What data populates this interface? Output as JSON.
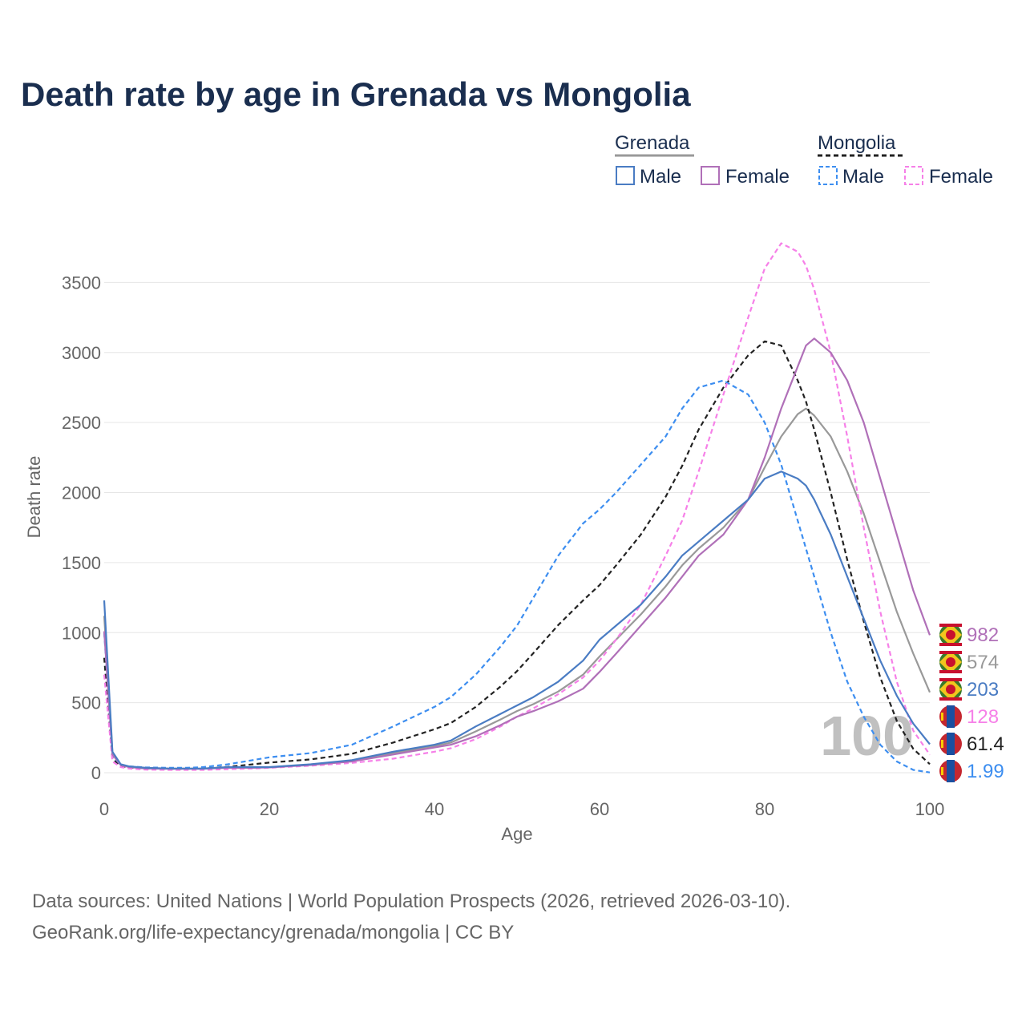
{
  "title": "Death rate by age in Grenada vs Mongolia",
  "legend": {
    "groups": [
      {
        "country": "Grenada",
        "male": "Male",
        "female": "Female"
      },
      {
        "country": "Mongolia",
        "male": "Male",
        "female": "Female"
      }
    ]
  },
  "colors": {
    "male": "#4a7cc3",
    "female": "#b070b8",
    "mongolia_male": "#3d8ef0",
    "mongolia_female": "#f680e8",
    "grenada_total": "#999999",
    "mongolia_total": "#222222"
  },
  "year_label": "100",
  "footer": {
    "line1": "Data sources: United Nations | World Population Prospects (2026, retrieved 2026-03-10).",
    "line2": "GeoRank.org/life-expectancy/grenada/mongolia | CC BY"
  },
  "chart_data": {
    "type": "line",
    "title": "Death rate by age in Grenada vs Mongolia",
    "xlabel": "Age",
    "ylabel": "Death rate",
    "xlim": [
      0,
      100
    ],
    "ylim": [
      0,
      3800
    ],
    "xticks": [
      0,
      20,
      40,
      60,
      80,
      100
    ],
    "yticks": [
      0,
      500,
      1000,
      1500,
      2000,
      2500,
      3000,
      3500
    ],
    "x": [
      0,
      1,
      2,
      3,
      5,
      8,
      10,
      12,
      15,
      18,
      20,
      25,
      30,
      35,
      40,
      42,
      45,
      48,
      50,
      52,
      55,
      58,
      60,
      62,
      65,
      68,
      70,
      72,
      75,
      78,
      80,
      82,
      84,
      85,
      86,
      88,
      90,
      92,
      94,
      96,
      98,
      100
    ],
    "series": [
      {
        "name": "Grenada Male",
        "key": "male",
        "dashed": false,
        "values": [
          1230,
          150,
          60,
          45,
          35,
          30,
          30,
          30,
          40,
          40,
          40,
          60,
          90,
          150,
          200,
          230,
          330,
          420,
          480,
          540,
          650,
          800,
          950,
          1050,
          1200,
          1400,
          1550,
          1650,
          1800,
          1950,
          2100,
          2150,
          2100,
          2050,
          1950,
          1700,
          1400,
          1100,
          800,
          550,
          350,
          203
        ],
        "end_label": "203"
      },
      {
        "name": "Grenada Female",
        "key": "female",
        "dashed": false,
        "values": [
          1010,
          130,
          55,
          40,
          30,
          28,
          28,
          28,
          35,
          35,
          38,
          55,
          80,
          130,
          180,
          200,
          260,
          340,
          400,
          440,
          510,
          600,
          720,
          850,
          1050,
          1250,
          1400,
          1550,
          1700,
          1950,
          2250,
          2600,
          2900,
          3050,
          3100,
          3000,
          2800,
          2500,
          2100,
          1700,
          1300,
          982
        ],
        "end_label": "982"
      },
      {
        "name": "Mongolia Male",
        "key": "mongolia_male",
        "dashed": true,
        "values": [
          1000,
          120,
          55,
          45,
          38,
          35,
          35,
          40,
          60,
          90,
          110,
          140,
          200,
          330,
          470,
          540,
          700,
          900,
          1050,
          1250,
          1550,
          1780,
          1880,
          2000,
          2200,
          2400,
          2600,
          2750,
          2800,
          2700,
          2500,
          2200,
          1800,
          1600,
          1400,
          1000,
          650,
          400,
          200,
          80,
          20,
          1.99
        ],
        "end_label": "1.99"
      },
      {
        "name": "Mongolia Female",
        "key": "mongolia_female",
        "dashed": true,
        "values": [
          700,
          80,
          40,
          30,
          22,
          20,
          20,
          20,
          25,
          30,
          35,
          50,
          70,
          100,
          150,
          175,
          240,
          330,
          400,
          460,
          560,
          680,
          800,
          950,
          1200,
          1550,
          1800,
          2150,
          2700,
          3250,
          3600,
          3780,
          3720,
          3620,
          3450,
          3000,
          2400,
          1750,
          1150,
          650,
          300,
          128
        ],
        "end_label": "128"
      },
      {
        "name": "Grenada",
        "key": "grenada_total",
        "dashed": false,
        "values": [
          1120,
          140,
          58,
          42,
          33,
          29,
          29,
          29,
          38,
          38,
          39,
          58,
          85,
          140,
          190,
          215,
          295,
          380,
          440,
          490,
          580,
          700,
          830,
          950,
          1130,
          1330,
          1480,
          1600,
          1750,
          1950,
          2180,
          2400,
          2560,
          2600,
          2550,
          2400,
          2150,
          1850,
          1500,
          1150,
          850,
          574
        ],
        "end_label": "574"
      },
      {
        "name": "Mongolia",
        "key": "mongolia_total",
        "dashed": true,
        "values": [
          820,
          100,
          48,
          38,
          30,
          28,
          28,
          30,
          42,
          60,
          72,
          95,
          135,
          215,
          310,
          355,
          470,
          615,
          725,
          855,
          1055,
          1230,
          1340,
          1480,
          1700,
          1970,
          2190,
          2450,
          2750,
          2980,
          3080,
          3050,
          2800,
          2650,
          2450,
          2000,
          1520,
          1080,
          680,
          370,
          170,
          61.4
        ],
        "end_label": "61.4"
      }
    ]
  }
}
